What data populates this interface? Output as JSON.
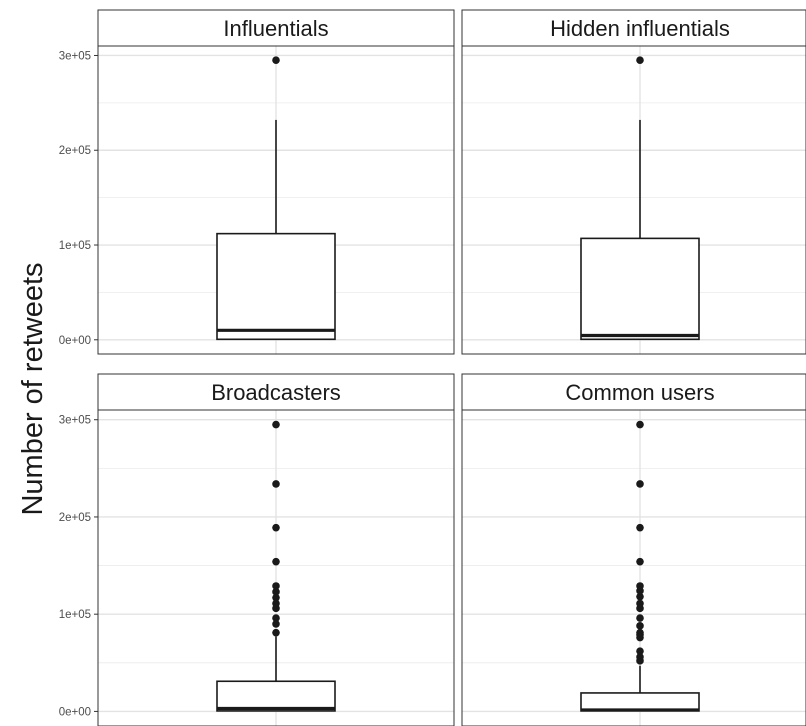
{
  "chart_data": {
    "type": "boxplot",
    "ylabel": "Number of retweets",
    "y_ticks": [
      {
        "value": 0,
        "label": "0e+00"
      },
      {
        "value": 100000,
        "label": "1e+05"
      },
      {
        "value": 200000,
        "label": "2e+05"
      },
      {
        "value": 300000,
        "label": "3e+05"
      }
    ],
    "ylim": [
      -15000,
      310000
    ],
    "grid": true,
    "panels": [
      {
        "title": "Influentials",
        "box": {
          "q1": 500,
          "median": 10000,
          "q3": 112000,
          "whisker_low": 0,
          "whisker_high": 232000
        },
        "outliers": [
          295000
        ]
      },
      {
        "title": "Hidden influentials",
        "box": {
          "q1": 500,
          "median": 4500,
          "q3": 107000,
          "whisker_low": 0,
          "whisker_high": 232000
        },
        "outliers": [
          295000
        ]
      },
      {
        "title": "Broadcasters",
        "box": {
          "q1": 500,
          "median": 3000,
          "q3": 31000,
          "whisker_low": 0,
          "whisker_high": 77000
        },
        "outliers": [
          81000,
          90000,
          96000,
          106000,
          111000,
          117000,
          123000,
          129000,
          154000,
          189000,
          234000,
          295000
        ]
      },
      {
        "title": "Common users",
        "box": {
          "q1": 500,
          "median": 1500,
          "q3": 19000,
          "whisker_low": 0,
          "whisker_high": 47000
        },
        "outliers": [
          52000,
          56000,
          62000,
          76000,
          79000,
          81000,
          88000,
          96000,
          106000,
          111000,
          118000,
          124000,
          129000,
          154000,
          189000,
          234000,
          295000
        ]
      }
    ]
  }
}
